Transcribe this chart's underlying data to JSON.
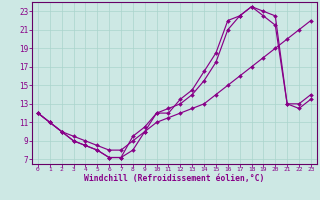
{
  "xlabel": "Windchill (Refroidissement éolien,°C)",
  "bg_color": "#cde8e4",
  "line_color": "#880088",
  "grid_color": "#aad4cc",
  "spine_color": "#660066",
  "xlim_min": -0.5,
  "xlim_max": 23.5,
  "ylim_min": 6.5,
  "ylim_max": 24.0,
  "xticks": [
    0,
    1,
    2,
    3,
    4,
    5,
    6,
    7,
    8,
    9,
    10,
    11,
    12,
    13,
    14,
    15,
    16,
    17,
    18,
    19,
    20,
    21,
    22,
    23
  ],
  "yticks": [
    7,
    9,
    11,
    13,
    15,
    17,
    19,
    21,
    23
  ],
  "line1_x": [
    0,
    1,
    2,
    3,
    4,
    5,
    6,
    7,
    8,
    9,
    10,
    11,
    12,
    13,
    14,
    15,
    16,
    17,
    18,
    19,
    20,
    21,
    22,
    23
  ],
  "line1_y": [
    12.0,
    11.0,
    10.0,
    9.0,
    8.5,
    8.0,
    7.2,
    7.2,
    8.0,
    10.0,
    12.0,
    12.5,
    13.0,
    14.0,
    15.5,
    17.5,
    21.0,
    22.5,
    23.5,
    23.0,
    22.5,
    13.0,
    13.0,
    14.0
  ],
  "line2_x": [
    0,
    1,
    2,
    3,
    4,
    5,
    6,
    7,
    8,
    9,
    10,
    11,
    12,
    13,
    14,
    15,
    16,
    17,
    18,
    19,
    20,
    21,
    22,
    23
  ],
  "line2_y": [
    12.0,
    11.0,
    10.0,
    9.0,
    8.5,
    8.0,
    7.2,
    7.2,
    9.5,
    10.5,
    12.0,
    12.0,
    13.5,
    14.5,
    16.5,
    18.5,
    22.0,
    22.5,
    23.5,
    22.5,
    21.5,
    13.0,
    12.5,
    13.5
  ],
  "line3_x": [
    0,
    1,
    2,
    3,
    4,
    5,
    6,
    7,
    8,
    9,
    10,
    11,
    12,
    13,
    14,
    15,
    16,
    17,
    18,
    19,
    20,
    21,
    22,
    23
  ],
  "line3_y": [
    12.0,
    11.0,
    10.0,
    9.5,
    9.0,
    8.5,
    8.0,
    8.0,
    9.0,
    10.0,
    11.0,
    11.5,
    12.0,
    12.5,
    13.0,
    14.0,
    15.0,
    16.0,
    17.0,
    18.0,
    19.0,
    20.0,
    21.0,
    22.0
  ]
}
